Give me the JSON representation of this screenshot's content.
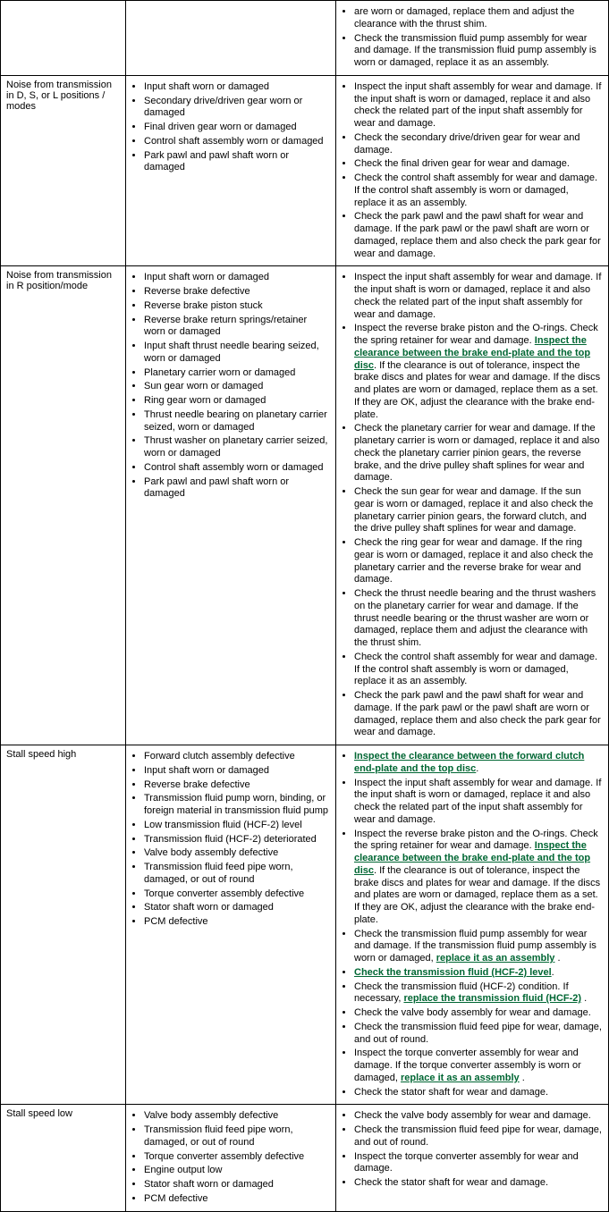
{
  "link_color": "#006633",
  "rows": [
    {
      "symptom": "",
      "causes": [],
      "remedies": [
        {
          "text": " are worn or damaged, replace them and adjust the clearance with the thrust shim."
        },
        {
          "text": "Check the transmission fluid pump assembly for wear and damage. If the transmission fluid pump assembly is worn or damaged, replace it as an assembly."
        }
      ]
    },
    {
      "symptom": "Noise from transmission in D, S, or L positions / modes",
      "causes": [
        "Input shaft worn or damaged",
        "Secondary drive/driven gear worn or damaged",
        "Final driven gear worn or damaged",
        "Control shaft assembly worn or damaged",
        "Park pawl and pawl shaft worn or damaged"
      ],
      "remedies": [
        {
          "text": "Inspect the input shaft assembly for wear and damage. If the input shaft is worn or damaged, replace it and also check the related part of the input shaft assembly for wear and damage."
        },
        {
          "text": "Check the secondary drive/driven gear for wear and damage."
        },
        {
          "text": "Check the final driven gear for wear and damage."
        },
        {
          "text": "Check the control shaft assembly for wear and damage. If the control shaft assembly is worn or damaged, replace it as an assembly."
        },
        {
          "text": "Check the park pawl and the pawl shaft for wear and damage. If the park pawl or the pawl shaft are worn or damaged, replace them and also check the park gear for wear and damage."
        }
      ]
    },
    {
      "symptom": "Noise from transmission in R position/mode",
      "causes": [
        "Input shaft worn or damaged",
        "Reverse brake defective",
        "Reverse brake piston stuck",
        "Reverse brake return springs/retainer worn or damaged",
        "Input shaft thrust needle bearing seized, worn or damaged",
        "Planetary carrier worn or damaged",
        "Sun gear worn or damaged",
        "Ring gear worn or damaged",
        "Thrust needle bearing on planetary carrier seized, worn or damaged",
        "Thrust washer on planetary carrier seized, worn or damaged",
        "Control shaft assembly worn or damaged",
        "Park pawl and pawl shaft worn or damaged"
      ],
      "remedies": [
        {
          "text": "Inspect the input shaft assembly for wear and damage. If the input shaft is worn or damaged, replace it and also check the related part of the input shaft assembly for wear and damage."
        },
        {
          "parts": [
            {
              "t": "Inspect the reverse brake piston and the O-rings. Check the spring retainer for wear and damage. "
            },
            {
              "t": "Inspect the clearance between the brake end-plate and the top disc",
              "link": true
            },
            {
              "t": ". If the clearance is out of tolerance, inspect the brake discs and plates for wear and damage. If the discs and plates are worn or damaged, replace them as a set. If they are OK, adjust the clearance with the brake end-plate."
            }
          ]
        },
        {
          "text": "Check the planetary carrier for wear and damage. If the planetary carrier is worn or damaged, replace it and also check the planetary carrier pinion gears, the reverse brake, and the drive pulley shaft splines for wear and damage."
        },
        {
          "text": "Check the sun gear for wear and damage. If the sun gear is worn or damaged, replace it and also check the planetary carrier pinion gears, the forward clutch, and the drive pulley shaft splines for wear and damage."
        },
        {
          "text": "Check the ring gear for wear and damage. If the ring gear is worn or damaged, replace it and also check the planetary carrier and the reverse brake for wear and damage."
        },
        {
          "text": "Check the thrust needle bearing and the thrust washers on the planetary carrier for wear and damage. If the thrust needle bearing or the thrust washer are worn or damaged, replace them and adjust the clearance with the thrust shim."
        },
        {
          "text": "Check the control shaft assembly for wear and damage. If the control shaft assembly is worn or damaged, replace it as an assembly."
        },
        {
          "text": "Check the park pawl and the pawl shaft for wear and damage. If the park pawl or the pawl shaft are worn or damaged, replace them and also check the park gear for wear and damage."
        }
      ]
    },
    {
      "symptom": "Stall speed high",
      "causes": [
        "Forward clutch assembly defective",
        "Input shaft worn or damaged",
        "Reverse brake defective",
        "Transmission fluid pump worn, binding, or foreign material in transmission fluid pump",
        "Low transmission fluid (HCF-2) level",
        "Transmission fluid (HCF-2) deteriorated",
        "Valve body assembly defective",
        "Transmission fluid feed pipe worn, damaged, or out of round",
        "Torque converter assembly defective",
        "Stator shaft worn or damaged",
        "PCM defective"
      ],
      "remedies": [
        {
          "parts": [
            {
              "t": "Inspect the clearance between the forward clutch end-plate and the top disc",
              "link": true
            },
            {
              "t": "."
            }
          ]
        },
        {
          "text": "Inspect the input shaft assembly for wear and damage. If the input shaft is worn or damaged, replace it and also check the related part of the input shaft assembly for wear and damage."
        },
        {
          "parts": [
            {
              "t": "Inspect the reverse brake piston and the O-rings. Check the spring retainer for wear and damage. "
            },
            {
              "t": "Inspect the clearance between the brake end-plate and the top disc",
              "link": true
            },
            {
              "t": ". If the clearance is out of tolerance, inspect the brake discs and plates for wear and damage. If the discs and plates are worn or damaged, replace them as a set. If they are OK, adjust the clearance with the brake end-plate."
            }
          ]
        },
        {
          "parts": [
            {
              "t": "Check the transmission fluid pump assembly for wear and damage. If the transmission fluid pump assembly is worn or damaged, "
            },
            {
              "t": "replace it as an assembly",
              "link": true
            },
            {
              "t": " ."
            }
          ]
        },
        {
          "parts": [
            {
              "t": "Check the transmission fluid (HCF-2) level",
              "link": true
            },
            {
              "t": "."
            }
          ]
        },
        {
          "parts": [
            {
              "t": "Check the transmission fluid (HCF-2) condition. If necessary, "
            },
            {
              "t": "replace the transmission fluid (HCF-2)",
              "link": true
            },
            {
              "t": " ."
            }
          ]
        },
        {
          "text": "Check the valve body assembly for wear and damage."
        },
        {
          "text": "Check the transmission fluid feed pipe for wear, damage, and out of round."
        },
        {
          "parts": [
            {
              "t": "Inspect the torque converter assembly for wear and damage. If the torque converter assembly is worn or damaged, "
            },
            {
              "t": "replace it as an assembly",
              "link": true
            },
            {
              "t": " ."
            }
          ]
        },
        {
          "text": "Check the stator shaft for wear and damage."
        }
      ]
    },
    {
      "symptom": "Stall speed low",
      "causes": [
        "Valve body assembly defective",
        "Transmission fluid feed pipe worn, damaged, or out of round",
        "Torque converter assembly defective",
        "Engine output low",
        "Stator shaft worn or damaged",
        "PCM defective"
      ],
      "remedies": [
        {
          "text": "Check the valve body assembly for wear and damage."
        },
        {
          "text": "Check the transmission fluid feed pipe for wear, damage, and out of round."
        },
        {
          "text": "Inspect the torque converter assembly for wear and damage."
        },
        {
          "text": "Check the stator shaft for wear and damage."
        }
      ]
    }
  ]
}
